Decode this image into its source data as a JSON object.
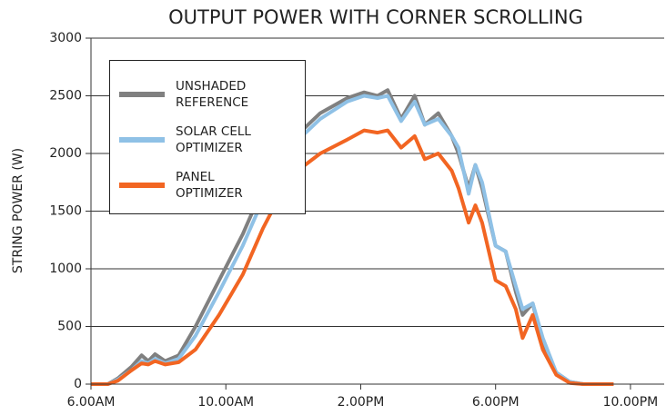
{
  "chart_data": {
    "type": "line",
    "title": "OUTPUT POWER WITH CORNER SCROLLING",
    "y_label": "STRING POWER (W)",
    "x": [
      6,
      6.5,
      6.8,
      7.2,
      7.5,
      7.7,
      7.9,
      8.2,
      8.6,
      9.1,
      9.8,
      10.5,
      11.1,
      11.9,
      12.8,
      13.6,
      14.1,
      14.5,
      14.8,
      15.2,
      15.6,
      15.9,
      16.3,
      16.7,
      16.9,
      17.2,
      17.4,
      17.6,
      18,
      18.3,
      18.6,
      18.8,
      19.1,
      19.4,
      19.8,
      20.2,
      20.6,
      21,
      21.5
    ],
    "series": [
      {
        "name": "UNSHADED REFERENCE",
        "color": "#808080",
        "values": [
          0,
          0,
          50,
          150,
          250,
          200,
          260,
          200,
          250,
          500,
          900,
          1300,
          1700,
          2100,
          2350,
          2480,
          2530,
          2500,
          2550,
          2300,
          2500,
          2250,
          2350,
          2150,
          2000,
          1700,
          1900,
          1700,
          1200,
          1150,
          800,
          600,
          700,
          350,
          100,
          20,
          0,
          0,
          0
        ]
      },
      {
        "name": "SOLAR CELL OPTIMIZER",
        "color": "#8fc1e6",
        "values": [
          0,
          0,
          40,
          120,
          200,
          180,
          220,
          180,
          220,
          420,
          800,
          1200,
          1600,
          2050,
          2300,
          2450,
          2500,
          2480,
          2500,
          2280,
          2450,
          2250,
          2300,
          2150,
          2050,
          1650,
          1900,
          1750,
          1200,
          1150,
          850,
          650,
          700,
          400,
          100,
          20,
          0,
          0,
          0
        ]
      },
      {
        "name": "PANEL OPTIMIZER",
        "color": "#f26522",
        "values": [
          0,
          0,
          30,
          120,
          180,
          170,
          200,
          170,
          190,
          300,
          600,
          950,
          1350,
          1800,
          2000,
          2120,
          2200,
          2180,
          2200,
          2050,
          2150,
          1950,
          2000,
          1850,
          1700,
          1400,
          1550,
          1400,
          900,
          850,
          650,
          400,
          600,
          300,
          80,
          10,
          0,
          0,
          0
        ]
      }
    ],
    "xlim": [
      6,
      23
    ],
    "xticks": [
      {
        "value": 6,
        "label": "6.00AM"
      },
      {
        "value": 10,
        "label": "10.00AM"
      },
      {
        "value": 14,
        "label": "2.00PM"
      },
      {
        "value": 18,
        "label": "6.00PM"
      },
      {
        "value": 22,
        "label": "10.00PM"
      }
    ],
    "ylim": [
      0,
      3000
    ],
    "yticks": [
      0,
      500,
      1000,
      1500,
      2000,
      2500,
      3000
    ],
    "grid": true
  }
}
